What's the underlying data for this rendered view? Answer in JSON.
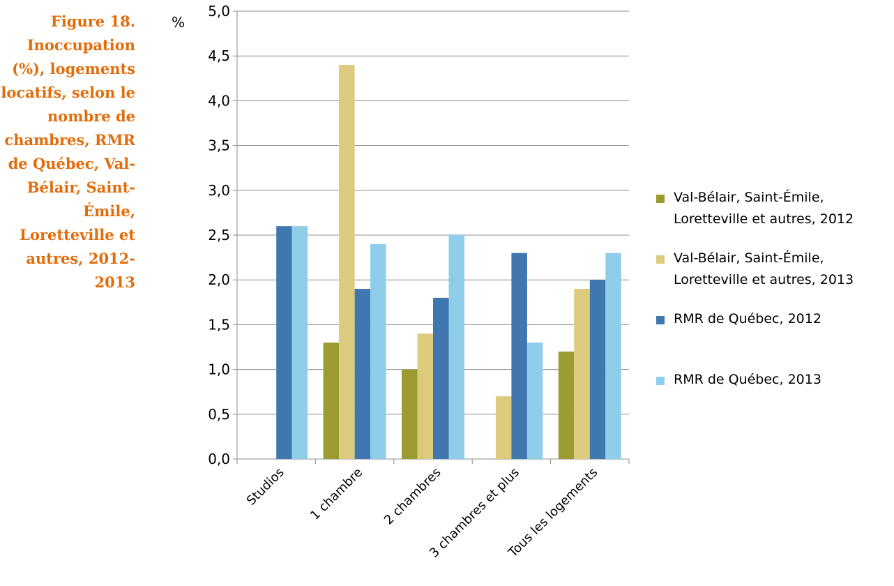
{
  "caption": "Figure 18. Inoccupation (%), logements locatifs, selon le nombre de chambres, RMR de Québec, Val-Bélair, Saint-Émile, Loretteville et autres, 2012-2013",
  "chart_data": {
    "type": "bar",
    "ylabel": "%",
    "ylim": [
      0,
      5
    ],
    "ytick_step": 0.5,
    "ytick_labels": [
      "0,0",
      "0,5",
      "1,0",
      "1,5",
      "2,0",
      "2,5",
      "3,0",
      "3,5",
      "4,0",
      "4,5",
      "5,0"
    ],
    "grid": true,
    "legend_position": "right",
    "categories": [
      "Studios",
      "1 chambre",
      "2 chambres",
      "3 chambres et plus",
      "Tous les logements"
    ],
    "series": [
      {
        "name": "Val-Bélair, Saint-Émile, Loretteville et autres, 2012",
        "legend_lines": [
          "Val-Bélair, Saint-Émile,",
          "Loretteville et autres, 2012"
        ],
        "color": "#9B9B31",
        "values": [
          null,
          1.3,
          1.0,
          null,
          1.2
        ]
      },
      {
        "name": "Val-Bélair, Saint-Émile, Loretteville et autres, 2013",
        "legend_lines": [
          "Val-Bélair, Saint-Émile,",
          "Loretteville et autres, 2013"
        ],
        "color": "#DDCB7D",
        "values": [
          null,
          4.4,
          1.4,
          0.7,
          1.9
        ]
      },
      {
        "name": "RMR de Québec, 2012",
        "legend_lines": [
          "RMR de Québec, 2012"
        ],
        "color": "#3F77AE",
        "values": [
          2.6,
          1.9,
          1.8,
          2.3,
          2.0
        ]
      },
      {
        "name": "RMR de Québec, 2013",
        "legend_lines": [
          "RMR de Québec, 2013"
        ],
        "color": "#8FCDEB",
        "values": [
          2.6,
          2.4,
          2.5,
          1.3,
          2.3
        ]
      }
    ]
  }
}
